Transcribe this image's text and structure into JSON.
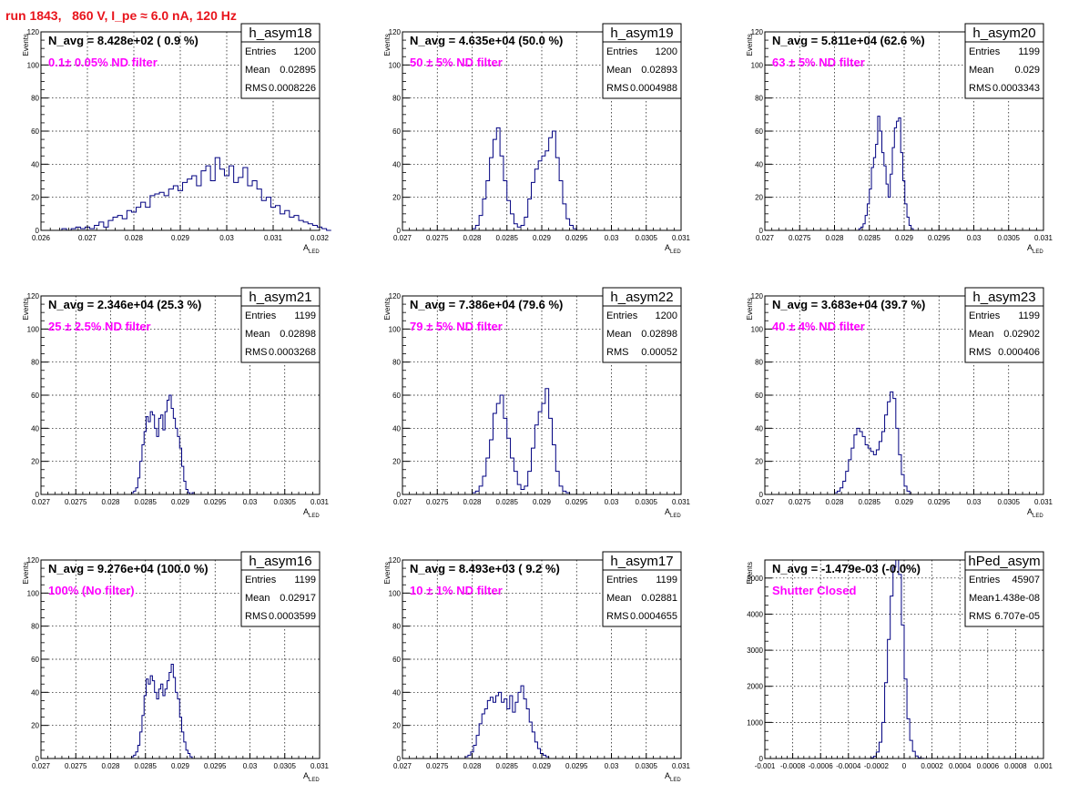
{
  "header": {
    "run_title": "run 1843,   860 V, I_pe ≈ 6.0 nA, 120 Hz"
  },
  "colors": {
    "title": "#e8141c",
    "annotation": "#ff00ff",
    "histogram": "#000080",
    "grid": "#000000",
    "frame": "#000000"
  },
  "stats_labels": {
    "entries": "Entries",
    "mean": "Mean",
    "rms": "RMS"
  },
  "chart_data": [
    {
      "type": "histogram",
      "name": "h_asym18",
      "navg_text": "N_avg = 8.428e+02 ( 0.9 %)",
      "filter_text": "0.1± 0.05% ND filter",
      "entries": "1200",
      "mean": "0.02895",
      "rms": "0.0008226",
      "xlim": [
        0.026,
        0.032
      ],
      "ylim": [
        0,
        120
      ],
      "xlabel": "A",
      "xlabel_sub": "LED",
      "ylabel": "Events",
      "xticks": [
        0.026,
        0.027,
        0.028,
        0.029,
        0.03,
        0.031,
        0.032
      ],
      "xtick_labels": [
        "0.026",
        "0.027",
        "0.028",
        "0.029",
        "0.03",
        "0.031",
        "0.032"
      ],
      "yticks": [
        0,
        20,
        40,
        60,
        80,
        100,
        120
      ],
      "ytick_labels": [
        "0",
        "20",
        "40",
        "60",
        "80",
        "100",
        "120"
      ],
      "bins": {
        "start": 0.02605,
        "width": 0.0001,
        "counts": [
          0,
          0,
          0,
          0,
          1,
          0,
          1,
          2,
          1,
          2,
          1,
          3,
          5,
          2,
          6,
          8,
          9,
          7,
          12,
          11,
          14,
          17,
          14,
          21,
          22,
          23,
          21,
          25,
          27,
          24,
          29,
          31,
          33,
          27,
          36,
          39,
          30,
          44,
          37,
          33,
          39,
          29,
          32,
          38,
          27,
          30,
          25,
          18,
          20,
          14,
          15,
          10,
          12,
          8,
          9,
          6,
          5,
          4,
          3,
          2,
          1,
          0
        ]
      }
    },
    {
      "type": "histogram",
      "name": "h_asym19",
      "navg_text": "N_avg = 4.635e+04 (50.0 %)",
      "filter_text": "50 ± 5% ND filter",
      "entries": "1200",
      "mean": "0.02893",
      "rms": "0.0004988",
      "xlim": [
        0.027,
        0.031
      ],
      "ylim": [
        0,
        120
      ],
      "xlabel": "A",
      "xlabel_sub": "LED",
      "ylabel": "Events",
      "xticks": [
        0.027,
        0.0275,
        0.028,
        0.0285,
        0.029,
        0.0295,
        0.03,
        0.0305,
        0.031
      ],
      "xtick_labels": [
        "0.027",
        "0.0275",
        "0.028",
        "0.0285",
        "0.029",
        "0.0295",
        "0.03",
        "0.0305",
        "0.031"
      ],
      "yticks": [
        0,
        20,
        40,
        60,
        80,
        100,
        120
      ],
      "ytick_labels": [
        "0",
        "20",
        "40",
        "60",
        "80",
        "100",
        "120"
      ],
      "bins": {
        "start": 0.028,
        "width": 5e-05,
        "counts": [
          1,
          3,
          9,
          19,
          30,
          44,
          55,
          62,
          45,
          30,
          18,
          10,
          4,
          2,
          3,
          8,
          19,
          29,
          37,
          42,
          45,
          48,
          56,
          60,
          44,
          30,
          16,
          7,
          3,
          1
        ]
      }
    },
    {
      "type": "histogram",
      "name": "h_asym20",
      "navg_text": "N_avg = 5.811e+04 (62.6 %)",
      "filter_text": "63 ± 5% ND filter",
      "entries": "1199",
      "mean": "0.029",
      "rms": "0.0003343",
      "xlim": [
        0.027,
        0.031
      ],
      "ylim": [
        0,
        120
      ],
      "xlabel": "A",
      "xlabel_sub": "LED",
      "ylabel": "Events",
      "xticks": [
        0.027,
        0.0275,
        0.028,
        0.0285,
        0.029,
        0.0295,
        0.03,
        0.0305,
        0.031
      ],
      "xtick_labels": [
        "0.027",
        "0.0275",
        "0.028",
        "0.0285",
        "0.029",
        "0.0295",
        "0.03",
        "0.0305",
        "0.031"
      ],
      "yticks": [
        0,
        20,
        40,
        60,
        80,
        100,
        120
      ],
      "ytick_labels": [
        "0",
        "20",
        "40",
        "60",
        "80",
        "100",
        "120"
      ],
      "bins": {
        "start": 0.02835,
        "width": 3e-05,
        "counts": [
          1,
          2,
          4,
          9,
          16,
          25,
          38,
          44,
          52,
          69,
          60,
          47,
          39,
          28,
          20,
          34,
          50,
          62,
          66,
          68,
          47,
          30,
          16,
          8,
          3,
          1
        ]
      }
    },
    {
      "type": "histogram",
      "name": "h_asym21",
      "navg_text": "N_avg = 2.346e+04 (25.3 %)",
      "filter_text": "25 ± 2.5% ND filter",
      "entries": "1199",
      "mean": "0.02898",
      "rms": "0.0003268",
      "xlim": [
        0.027,
        0.031
      ],
      "ylim": [
        0,
        120
      ],
      "xlabel": "A",
      "xlabel_sub": "LED",
      "ylabel": "Events",
      "xticks": [
        0.027,
        0.0275,
        0.028,
        0.0285,
        0.029,
        0.0295,
        0.03,
        0.0305,
        0.031
      ],
      "xtick_labels": [
        "0.027",
        "0.0275",
        "0.028",
        "0.0285",
        "0.029",
        "0.0295",
        "0.03",
        "0.0305",
        "0.031"
      ],
      "yticks": [
        0,
        20,
        40,
        60,
        80,
        100,
        120
      ],
      "ytick_labels": [
        "0",
        "20",
        "40",
        "60",
        "80",
        "100",
        "120"
      ],
      "bins": {
        "start": 0.0283,
        "width": 3e-05,
        "counts": [
          1,
          2,
          4,
          10,
          20,
          30,
          38,
          47,
          44,
          50,
          48,
          40,
          35,
          46,
          48,
          39,
          50,
          57,
          60,
          52,
          46,
          40,
          35,
          28,
          17,
          8,
          3,
          1,
          0,
          1
        ]
      }
    },
    {
      "type": "histogram",
      "name": "h_asym22",
      "navg_text": "N_avg = 7.386e+04 (79.6 %)",
      "filter_text": "79 ± 5% ND filter",
      "entries": "1200",
      "mean": "0.02898",
      "rms": "0.00052",
      "xlim": [
        0.027,
        0.031
      ],
      "ylim": [
        0,
        120
      ],
      "xlabel": "A",
      "xlabel_sub": "LED",
      "ylabel": "Events",
      "xticks": [
        0.027,
        0.0275,
        0.028,
        0.0285,
        0.029,
        0.0295,
        0.03,
        0.0305,
        0.031
      ],
      "xtick_labels": [
        "0.027",
        "0.0275",
        "0.028",
        "0.0285",
        "0.029",
        "0.0295",
        "0.03",
        "0.0305",
        "0.031"
      ],
      "yticks": [
        0,
        20,
        40,
        60,
        80,
        100,
        120
      ],
      "ytick_labels": [
        "0",
        "20",
        "40",
        "60",
        "80",
        "100",
        "120"
      ],
      "bins": {
        "start": 0.028,
        "width": 5e-05,
        "counts": [
          1,
          2,
          5,
          11,
          22,
          33,
          49,
          55,
          60,
          46,
          34,
          22,
          14,
          6,
          3,
          5,
          14,
          28,
          42,
          50,
          55,
          64,
          46,
          30,
          14,
          5,
          2,
          1
        ]
      }
    },
    {
      "type": "histogram",
      "name": "h_asym23",
      "navg_text": "N_avg = 3.683e+04 (39.7 %)",
      "filter_text": "40 ± 4% ND filter",
      "entries": "1199",
      "mean": "0.02902",
      "rms": "0.000406",
      "xlim": [
        0.027,
        0.031
      ],
      "ylim": [
        0,
        120
      ],
      "xlabel": "A",
      "xlabel_sub": "LED",
      "ylabel": "Events",
      "xticks": [
        0.027,
        0.0275,
        0.028,
        0.0285,
        0.029,
        0.0295,
        0.03,
        0.0305,
        0.031
      ],
      "xtick_labels": [
        "0.027",
        "0.0275",
        "0.028",
        "0.0285",
        "0.029",
        "0.0295",
        "0.03",
        "0.0305",
        "0.031"
      ],
      "yticks": [
        0,
        20,
        40,
        60,
        80,
        100,
        120
      ],
      "ytick_labels": [
        "0",
        "20",
        "40",
        "60",
        "80",
        "100",
        "120"
      ],
      "bins": {
        "start": 0.028,
        "width": 4e-05,
        "counts": [
          1,
          2,
          4,
          8,
          14,
          21,
          28,
          36,
          40,
          38,
          35,
          30,
          28,
          26,
          24,
          27,
          32,
          38,
          48,
          56,
          62,
          58,
          40,
          24,
          12,
          5,
          2
        ]
      }
    },
    {
      "type": "histogram",
      "name": "h_asym16",
      "navg_text": "N_avg = 9.276e+04 (100.0 %)",
      "filter_text": "100% (No filter)",
      "entries": "1199",
      "mean": "0.02917",
      "rms": "0.0003599",
      "xlim": [
        0.027,
        0.031
      ],
      "ylim": [
        0,
        120
      ],
      "xlabel": "A",
      "xlabel_sub": "LED",
      "ylabel": "Events",
      "xticks": [
        0.027,
        0.0275,
        0.028,
        0.0285,
        0.029,
        0.0295,
        0.03,
        0.0305,
        0.031
      ],
      "xtick_labels": [
        "0.027",
        "0.0275",
        "0.028",
        "0.0285",
        "0.029",
        "0.0295",
        "0.03",
        "0.0305",
        "0.031"
      ],
      "yticks": [
        0,
        20,
        40,
        60,
        80,
        100,
        120
      ],
      "ytick_labels": [
        "0",
        "20",
        "40",
        "60",
        "80",
        "100",
        "120"
      ],
      "bins": {
        "start": 0.0283,
        "width": 3e-05,
        "counts": [
          1,
          2,
          4,
          8,
          16,
          26,
          38,
          48,
          45,
          50,
          47,
          40,
          36,
          42,
          45,
          38,
          42,
          47,
          52,
          57,
          49,
          40,
          36,
          25,
          16,
          10,
          5,
          3,
          1
        ]
      }
    },
    {
      "type": "histogram",
      "name": "h_asym17",
      "navg_text": "N_avg = 8.493e+03 ( 9.2 %)",
      "filter_text": "10 ± 1% ND filter",
      "entries": "1199",
      "mean": "0.02881",
      "rms": "0.0004655",
      "xlim": [
        0.027,
        0.031
      ],
      "ylim": [
        0,
        120
      ],
      "xlabel": "A",
      "xlabel_sub": "LED",
      "ylabel": "Events",
      "xticks": [
        0.027,
        0.0275,
        0.028,
        0.0285,
        0.029,
        0.0295,
        0.03,
        0.0305,
        0.031
      ],
      "xtick_labels": [
        "0.027",
        "0.0275",
        "0.028",
        "0.0285",
        "0.029",
        "0.0295",
        "0.03",
        "0.0305",
        "0.031"
      ],
      "yticks": [
        0,
        20,
        40,
        60,
        80,
        100,
        120
      ],
      "ytick_labels": [
        "0",
        "20",
        "40",
        "60",
        "80",
        "100",
        "120"
      ],
      "bins": {
        "start": 0.0279,
        "width": 4e-05,
        "counts": [
          1,
          2,
          4,
          8,
          14,
          21,
          27,
          30,
          35,
          37,
          34,
          38,
          40,
          34,
          36,
          30,
          38,
          28,
          34,
          40,
          44,
          36,
          30,
          22,
          16,
          10,
          6,
          3,
          2,
          1
        ]
      }
    },
    {
      "type": "histogram",
      "name": "hPed_asym",
      "navg_text": "N_avg = -1.479e-03 (-0.0%)",
      "filter_text": "Shutter Closed",
      "entries": "45907",
      "mean": "-1.438e-08",
      "rms": "6.707e-05",
      "xlim": [
        -0.001,
        0.001
      ],
      "ylim": [
        0,
        5500
      ],
      "xlabel": "",
      "xlabel_sub": "",
      "ylabel": "Events",
      "xticks": [
        -0.001,
        -0.0008,
        -0.0006,
        -0.0004,
        -0.0002,
        0,
        0.0002,
        0.0004,
        0.0006,
        0.0008,
        0.001
      ],
      "xtick_labels": [
        "-0.001",
        "-0.0008",
        "-0.0006",
        "-0.0004",
        "-0.0002",
        "0",
        "0.0002",
        "0.0004",
        "0.0006",
        "0.0008",
        "0.001"
      ],
      "yticks": [
        0,
        1000,
        2000,
        3000,
        4000,
        5000
      ],
      "ytick_labels": [
        "0",
        "1000",
        "2000",
        "3000",
        "4000",
        "5000"
      ],
      "bins": {
        "start": -0.00024,
        "width": 2e-05,
        "counts": [
          20,
          60,
          180,
          450,
          1000,
          2100,
          3300,
          4500,
          5300,
          5500,
          5100,
          3700,
          2200,
          1100,
          500,
          200,
          70,
          20,
          5
        ]
      }
    }
  ]
}
